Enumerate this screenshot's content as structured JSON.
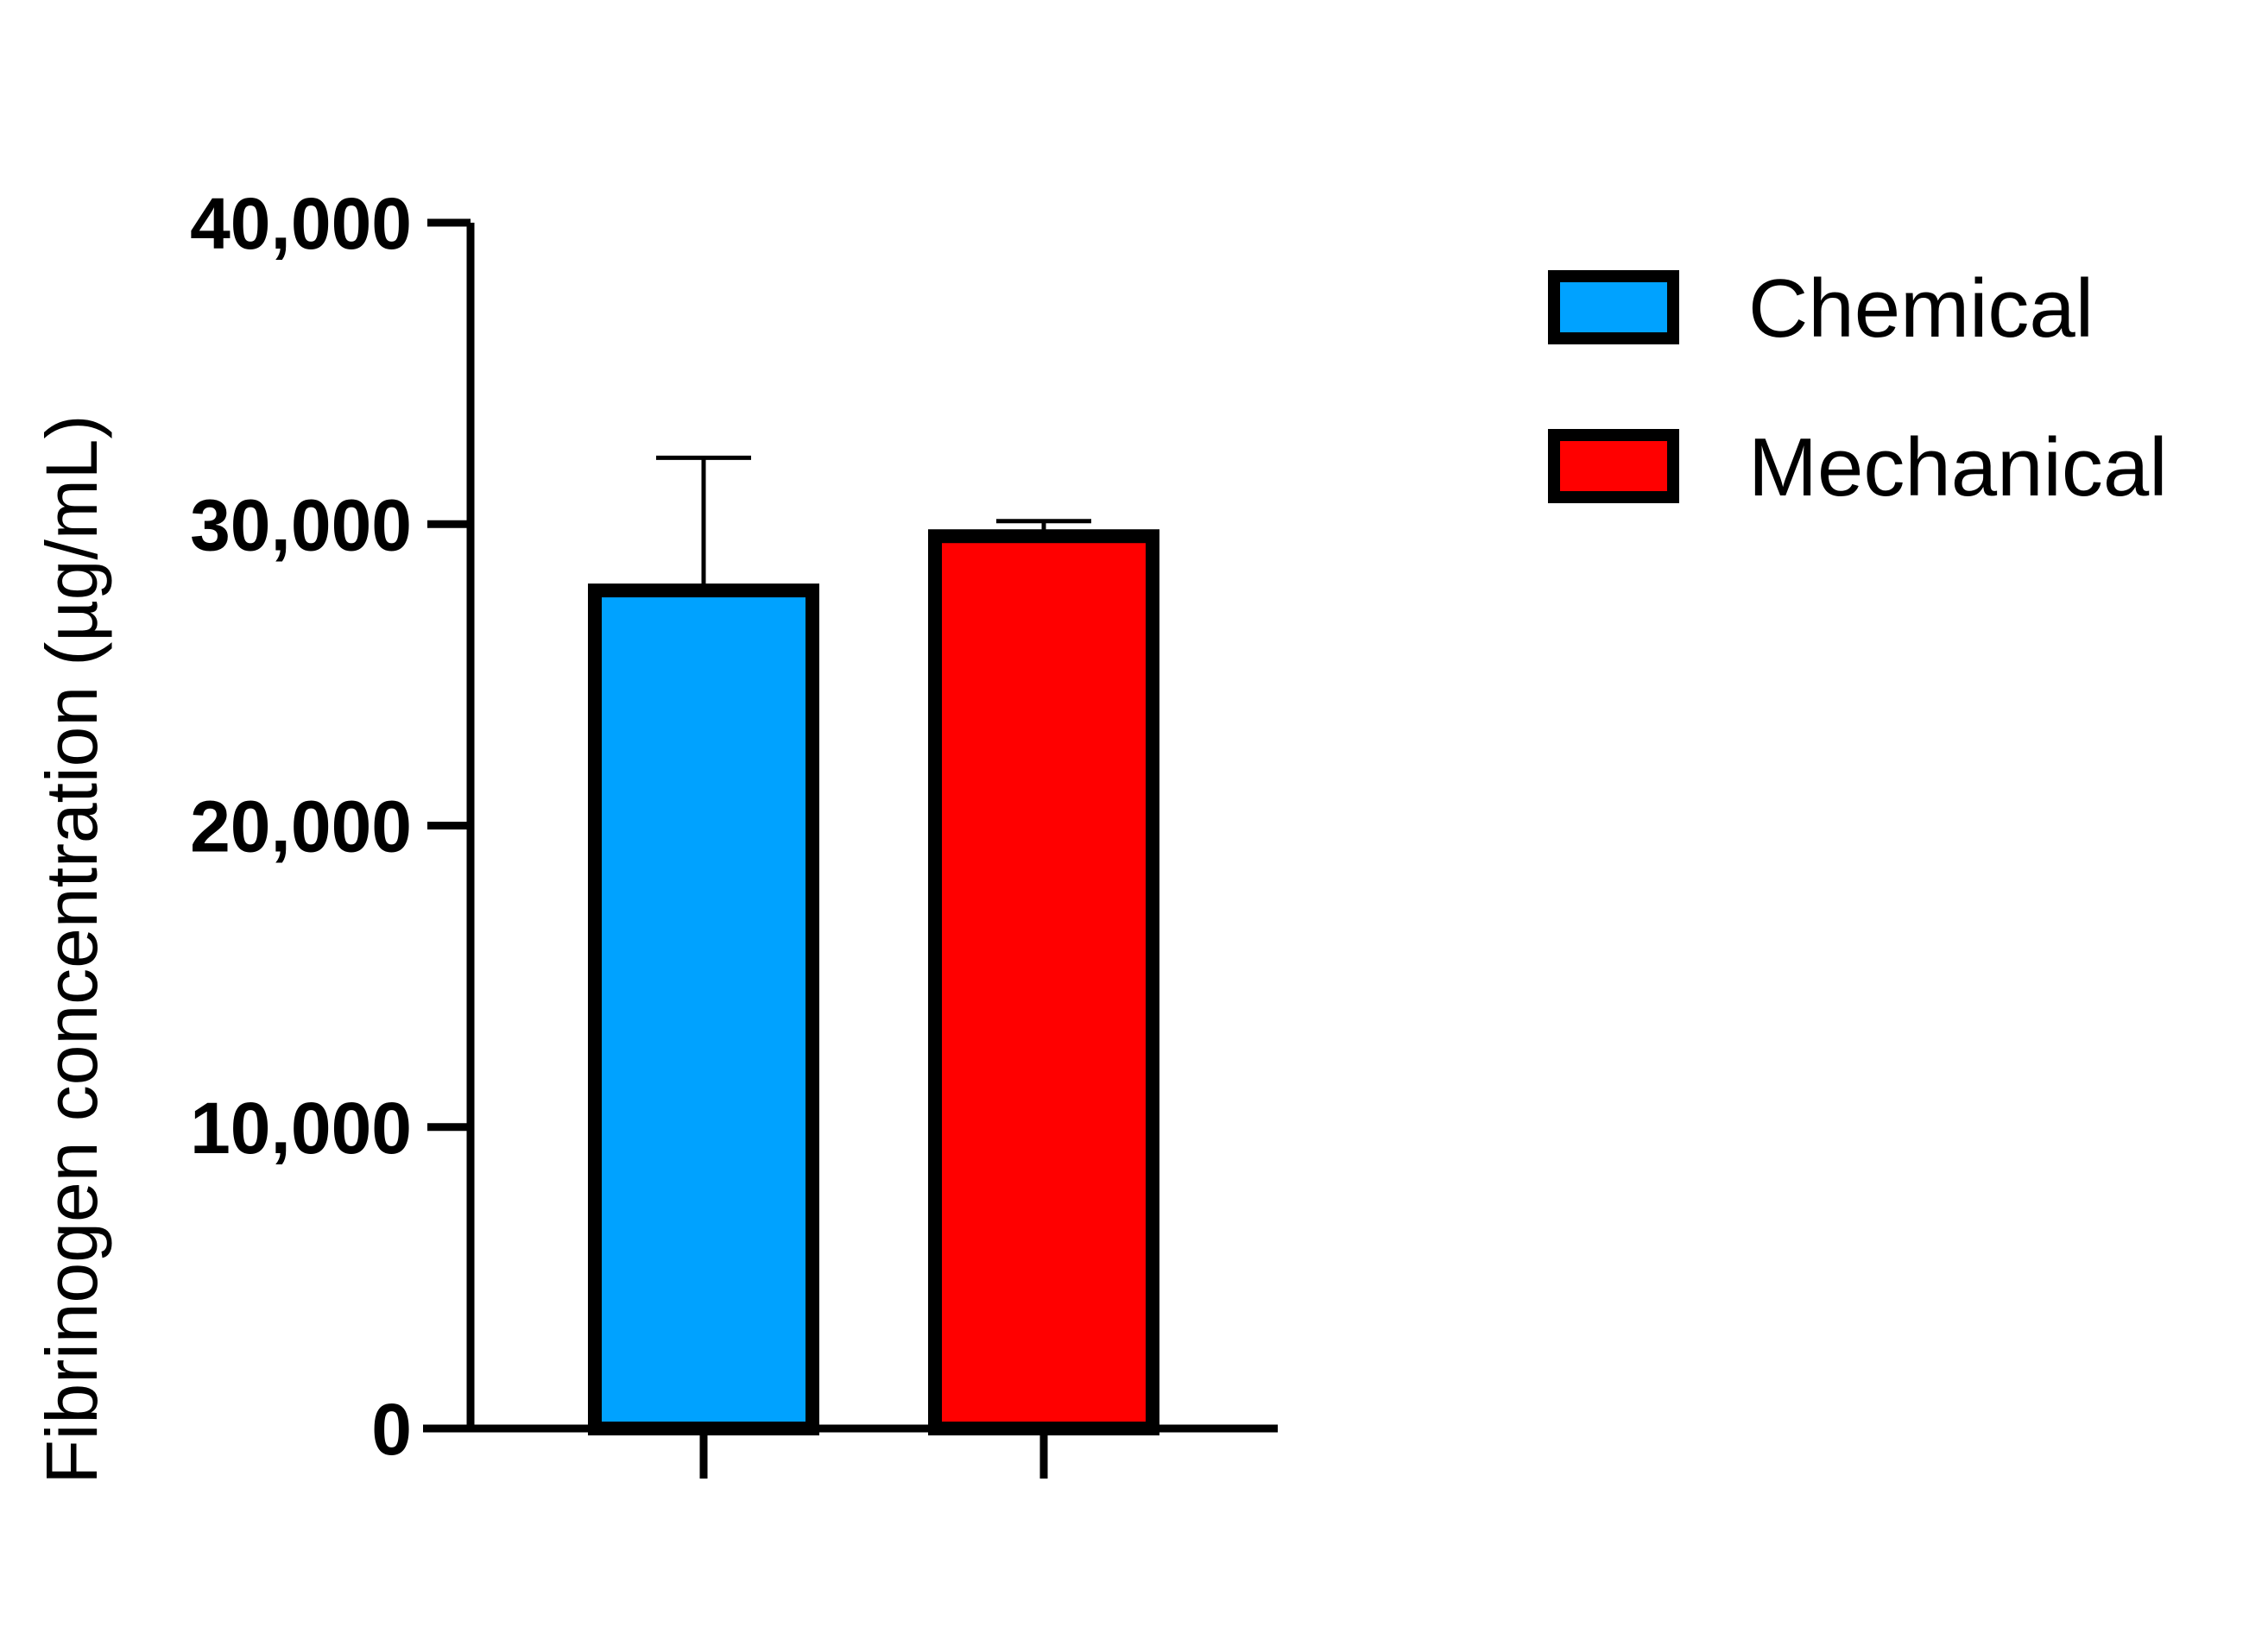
{
  "chart_data": {
    "type": "bar",
    "title": "",
    "xlabel": "",
    "ylabel": "Fibrinogen concentration (µg/mL)",
    "ylim": [
      0,
      40000
    ],
    "yticks": [
      0,
      10000,
      20000,
      30000,
      40000
    ],
    "ytick_labels": [
      "0",
      "10,000",
      "20,000",
      "30,000",
      "40,000"
    ],
    "grid": false,
    "legend_position": "top-right",
    "categories": [
      "Chemical",
      "Mechanical"
    ],
    "series": [
      {
        "name": "Chemical",
        "value": 27800,
        "error": 4400,
        "color": "#00a2ff"
      },
      {
        "name": "Mechanical",
        "value": 29600,
        "error": 500,
        "color": "#ff0000"
      }
    ]
  }
}
